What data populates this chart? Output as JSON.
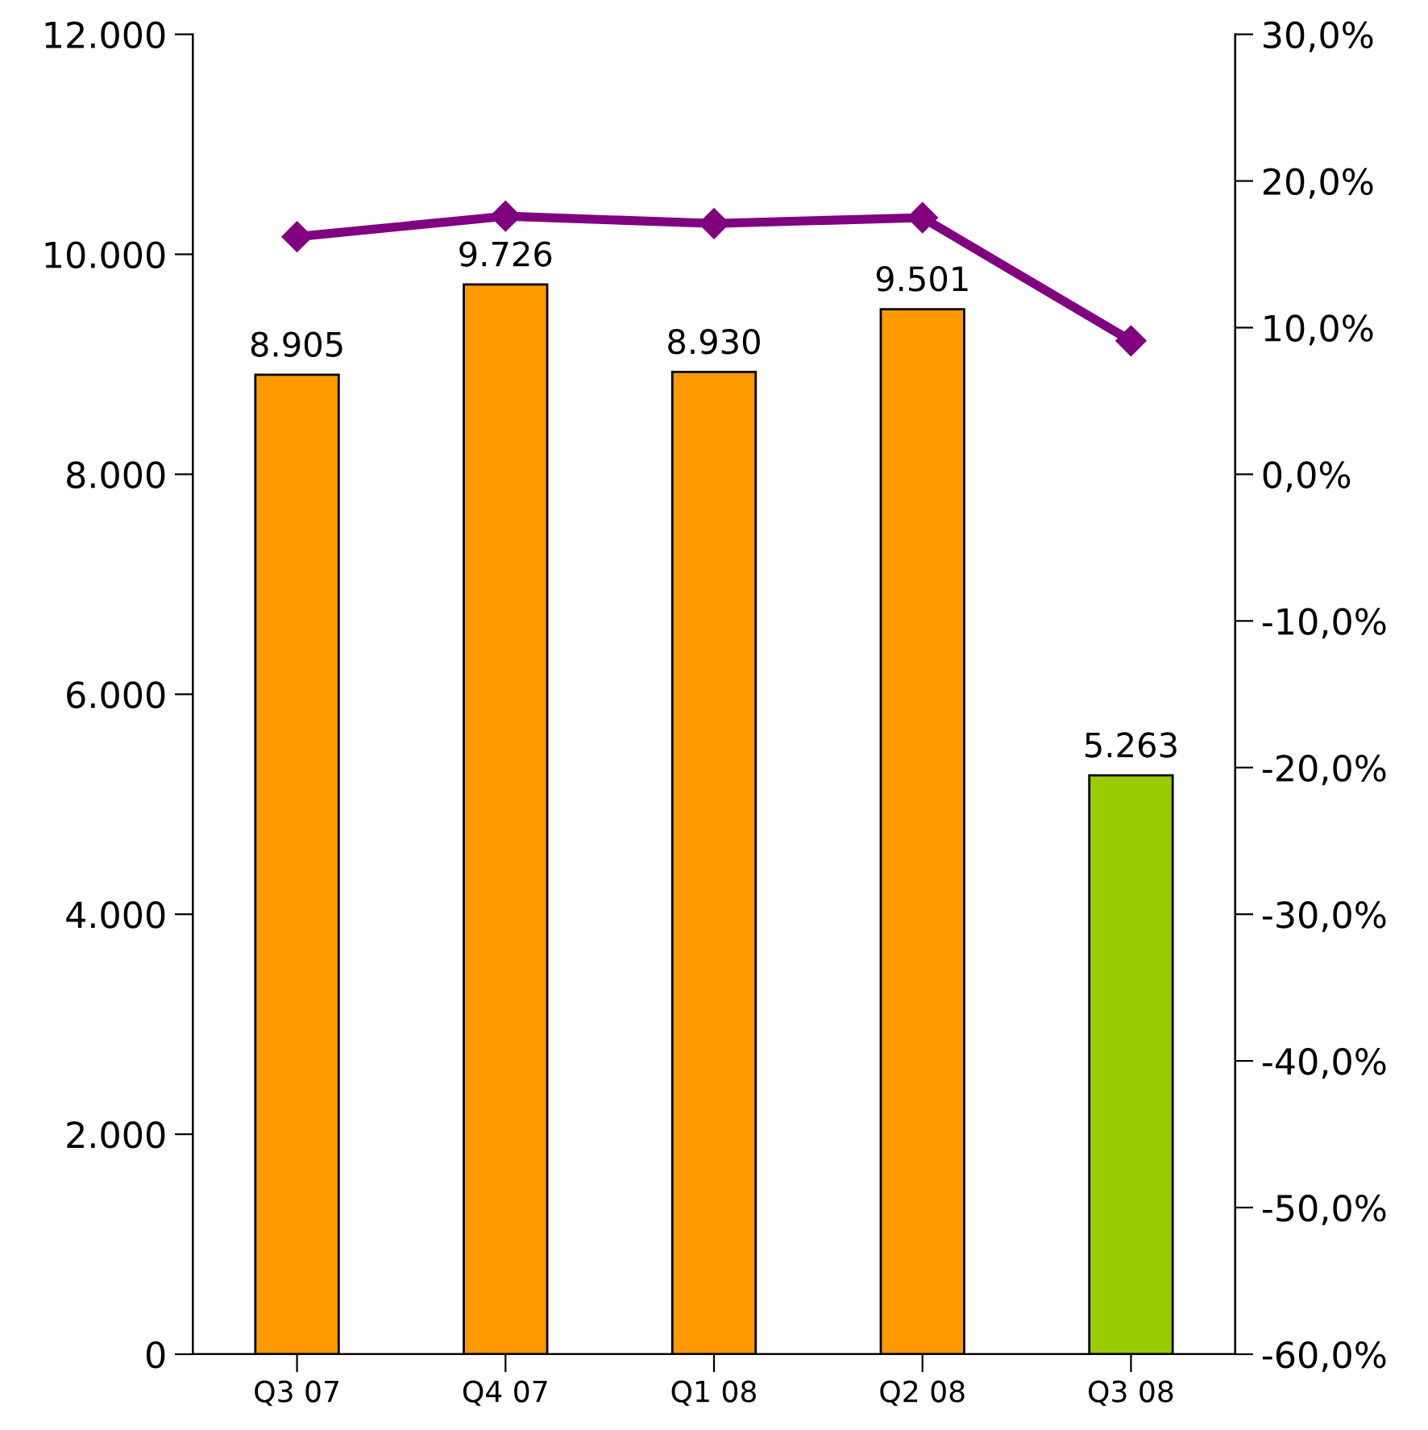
{
  "chart_data": {
    "type": "bar",
    "categories": [
      "Q3 07",
      "Q4 07",
      "Q1 08",
      "Q2 08",
      "Q3 08"
    ],
    "series": [
      {
        "colors": [
          "#ff9900",
          "#ff9900",
          "#ff9900",
          "#ff9900",
          "#99cc00"
        ],
        "values": [
          8905,
          9726,
          8930,
          9501,
          5263
        ],
        "value_labels": [
          "8.905",
          "9.726",
          "8.930",
          "9.501",
          "5.263"
        ]
      },
      {
        "type": "line",
        "axis": "y2",
        "color": "#800080",
        "values": [
          16.2,
          17.6,
          17.1,
          17.5,
          9.1
        ],
        "marker": "diamond"
      }
    ],
    "ylim": [
      0,
      12000
    ],
    "yticks": [
      {
        "value": 0,
        "label": "0"
      },
      {
        "value": 2000,
        "label": "2.000"
      },
      {
        "value": 4000,
        "label": "4.000"
      },
      {
        "value": 6000,
        "label": "6.000"
      },
      {
        "value": 8000,
        "label": "8.000"
      },
      {
        "value": 10000,
        "label": "10.000"
      },
      {
        "value": 12000,
        "label": "12.000"
      }
    ],
    "y2lim": [
      -60,
      30
    ],
    "y2ticks": [
      {
        "value": -60,
        "label": "-60,0%"
      },
      {
        "value": -50,
        "label": "-50,0%"
      },
      {
        "value": -40,
        "label": "-40,0%"
      },
      {
        "value": -30,
        "label": "-30,0%"
      },
      {
        "value": -20,
        "label": "-20,0%"
      },
      {
        "value": -10,
        "label": "-10,0%"
      },
      {
        "value": 0,
        "label": "0,0%"
      },
      {
        "value": 10,
        "label": "10,0%"
      },
      {
        "value": 20,
        "label": "20,0%"
      },
      {
        "value": 30,
        "label": "30,0%"
      }
    ],
    "grid": false,
    "legend": false
  }
}
